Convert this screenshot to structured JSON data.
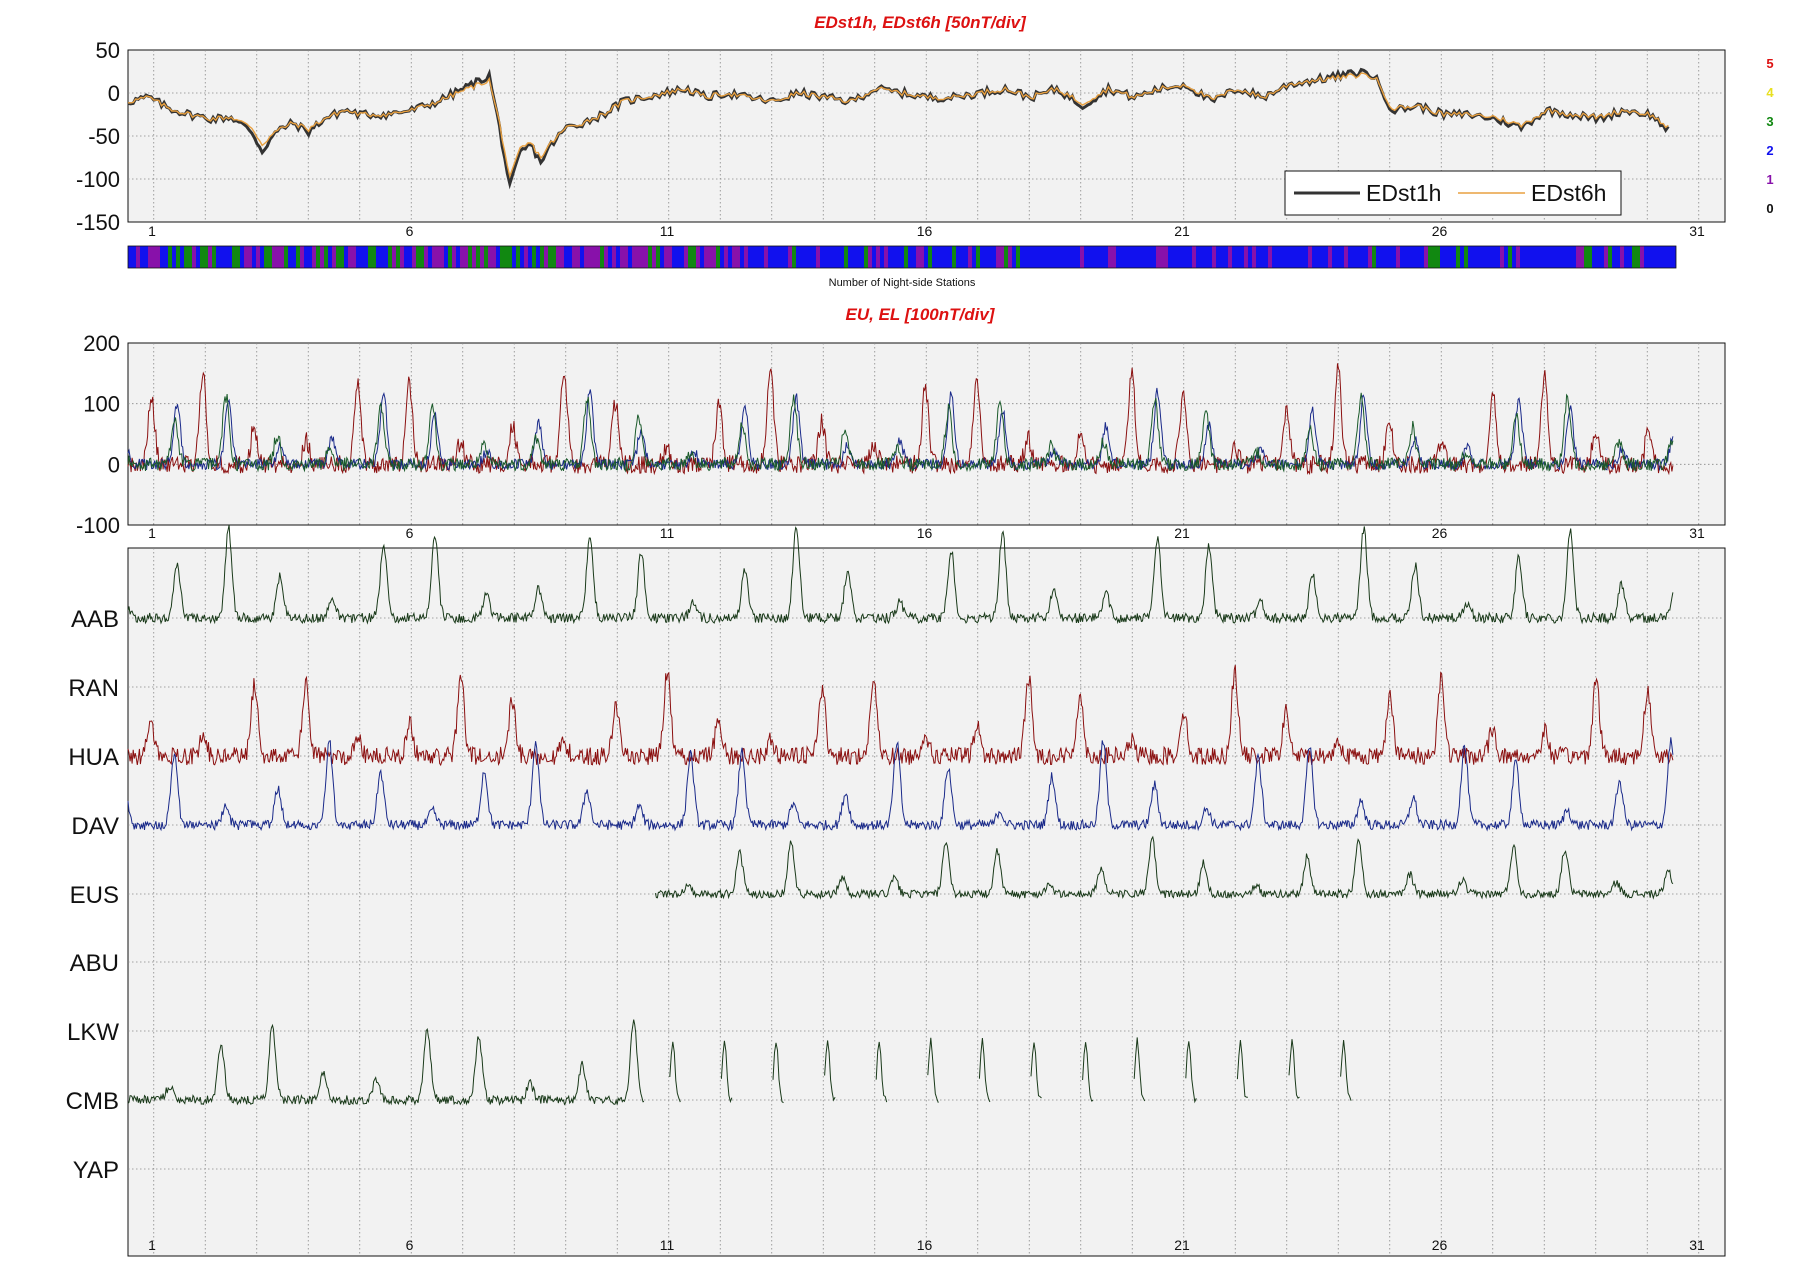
{
  "chart_data": [
    {
      "type": "line",
      "title": "EDst1h, EDst6h [50nT/div]",
      "ylim": [
        -150,
        50
      ],
      "yticks": [
        "50",
        "0",
        "-50",
        "-100",
        "-150"
      ],
      "xlim": [
        0,
        31
      ],
      "xticks": [
        "1",
        "6",
        "11",
        "16",
        "21",
        "26",
        "31"
      ],
      "grid": true,
      "legend_position": "bottom-right",
      "series": [
        {
          "name": "EDst1h",
          "color": "#333333"
        },
        {
          "name": "EDst6h",
          "color": "#e8a040"
        }
      ],
      "x": [
        0.0,
        0.4,
        0.8,
        1.2,
        1.6,
        2.0,
        2.4,
        2.6,
        2.8,
        3.0,
        3.2,
        3.5,
        3.8,
        4.2,
        4.5,
        5.0,
        5.5,
        6.0,
        6.5,
        7.0,
        7.2,
        7.4,
        7.6,
        7.8,
        8.0,
        8.2,
        8.5,
        8.8,
        9.2,
        9.6,
        10.0,
        10.4,
        10.8,
        11.2,
        11.6,
        12.0,
        12.5,
        13.0,
        13.5,
        14.0,
        14.5,
        15.0,
        15.5,
        16.0,
        16.5,
        17.0,
        17.5,
        18.0,
        18.5,
        19.0,
        19.5,
        20.0,
        20.5,
        21.0,
        21.5,
        22.0,
        22.5,
        23.0,
        23.5,
        24.0,
        24.2,
        24.5,
        25.0,
        25.5,
        26.0,
        26.5,
        27.0,
        27.5,
        28.0,
        28.5,
        29.0,
        29.5,
        29.9
      ],
      "values": [
        [
          -10,
          -5,
          -18,
          -25,
          -30,
          -28,
          -45,
          -68,
          -50,
          -40,
          -35,
          -45,
          -30,
          -20,
          -25,
          -25,
          -20,
          -10,
          5,
          20,
          -40,
          -110,
          -70,
          -60,
          -80,
          -60,
          -40,
          -35,
          -25,
          -10,
          -5,
          0,
          5,
          -5,
          0,
          -5,
          -10,
          0,
          -5,
          -10,
          5,
          0,
          -5,
          -5,
          0,
          5,
          -5,
          5,
          -15,
          5,
          -5,
          5,
          10,
          -10,
          5,
          -5,
          10,
          15,
          20,
          25,
          15,
          -20,
          -15,
          -25,
          -25,
          -30,
          -40,
          -20,
          -25,
          -30,
          -20,
          -25,
          -45
        ],
        [
          -10,
          -5,
          -18,
          -25,
          -30,
          -28,
          -40,
          -60,
          -48,
          -40,
          -35,
          -42,
          -30,
          -20,
          -25,
          -25,
          -20,
          -10,
          3,
          15,
          -35,
          -100,
          -65,
          -58,
          -75,
          -58,
          -40,
          -35,
          -25,
          -10,
          -5,
          0,
          5,
          -5,
          0,
          -5,
          -10,
          0,
          -5,
          -10,
          5,
          0,
          -5,
          -5,
          0,
          5,
          -5,
          5,
          -12,
          5,
          -5,
          5,
          10,
          -8,
          5,
          -5,
          10,
          15,
          18,
          22,
          15,
          -18,
          -15,
          -25,
          -25,
          -28,
          -38,
          -20,
          -25,
          -28,
          -20,
          -25,
          -42
        ]
      ]
    },
    {
      "type": "heatmap",
      "title": "Number of Night-side Stations",
      "scale_labels": [
        "5",
        "4",
        "3",
        "2",
        "1",
        "0"
      ],
      "scale_colors": [
        "#dd1111",
        "#e8e020",
        "#118811",
        "#1111ee",
        "#8811aa",
        "#111111"
      ]
    },
    {
      "type": "line",
      "title": "EU, EL   [100nT/div]",
      "ylim": [
        -100,
        200
      ],
      "yticks": [
        "200",
        "100",
        "0",
        "-100"
      ],
      "xticks": [
        "1",
        "6",
        "11",
        "16",
        "21",
        "26",
        "31"
      ],
      "grid": true
    },
    {
      "type": "line",
      "stations": [
        "AAB",
        "RAN",
        "HUA",
        "DAV",
        "EUS",
        "ABU",
        "LKW",
        "CMB",
        "YAP"
      ],
      "xticks": [
        "1",
        "6",
        "11",
        "16",
        "21",
        "26",
        "31"
      ],
      "grid": true
    }
  ]
}
